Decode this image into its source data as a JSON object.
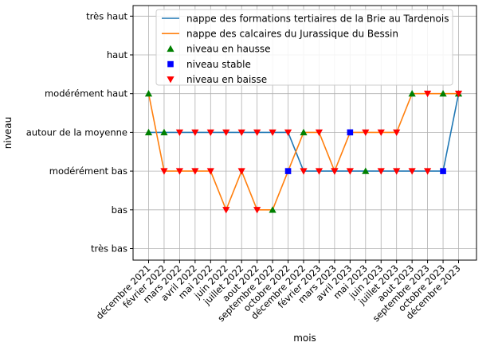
{
  "chart_data": {
    "type": "line",
    "xlabel": "mois",
    "ylabel": "niveau",
    "grid": true,
    "legend_position": "top-right",
    "y_levels": [
      "très bas",
      "bas",
      "modérément bas",
      "autour de la moyenne",
      "modérément haut",
      "haut",
      "très haut"
    ],
    "x_tick_labels": [
      "décembre 2021",
      "février 2022",
      "mars 2022",
      "avril 2022",
      "mai 2022",
      "juin 2022",
      "juillet 2022",
      "aout 2022",
      "septembre 2022",
      "octobre 2022",
      "décembre 2022",
      "février 2023",
      "mars 2023",
      "avril 2023",
      "mai 2023",
      "juin 2023",
      "juillet 2023",
      "aout 2023",
      "septembre 2023",
      "octobre 2023",
      "décembre 2023"
    ],
    "series": [
      {
        "name": "nappe des formations tertiaires de la Brie au Tardenois",
        "color": "#1f77b4",
        "values": [
          "autour de la moyenne",
          "autour de la moyenne",
          "autour de la moyenne",
          "autour de la moyenne",
          "autour de la moyenne",
          "autour de la moyenne",
          "autour de la moyenne",
          "autour de la moyenne",
          "autour de la moyenne",
          "autour de la moyenne",
          "modérément bas",
          "modérément bas",
          "modérément bas",
          "modérément bas",
          "modérément bas",
          "modérément bas",
          "modérément bas",
          "modérément bas",
          "modérément bas",
          "modérément bas",
          "modérément haut"
        ],
        "markers": [
          "hausse",
          "hausse",
          "baisse",
          "baisse",
          "baisse",
          "baisse",
          "baisse",
          "baisse",
          "baisse",
          "baisse",
          "baisse",
          "baisse",
          "baisse",
          "baisse",
          "hausse",
          "baisse",
          "baisse",
          "baisse",
          "baisse",
          "stable",
          "hausse"
        ]
      },
      {
        "name": "nappe des calcaires du Jurassique du Bessin",
        "color": "#ff7f0e",
        "values": [
          "modérément haut",
          "modérément bas",
          "modérément bas",
          "modérément bas",
          "modérément bas",
          "bas",
          "modérément bas",
          "bas",
          "bas",
          "modérément bas",
          "autour de la moyenne",
          "autour de la moyenne",
          "modérément bas",
          "autour de la moyenne",
          "autour de la moyenne",
          "autour de la moyenne",
          "autour de la moyenne",
          "modérément haut",
          "modérément haut",
          "modérément haut",
          "modérément haut"
        ],
        "markers": [
          "hausse",
          "baisse",
          "baisse",
          "baisse",
          "baisse",
          "baisse",
          "baisse",
          "baisse",
          "hausse",
          "stable",
          "hausse",
          "baisse",
          "baisse",
          "stable",
          "baisse",
          "baisse",
          "baisse",
          "hausse",
          "baisse",
          "hausse",
          "baisse"
        ]
      }
    ],
    "marker_legend": [
      {
        "key": "hausse",
        "label": "niveau en hausse",
        "shape": "triangle-up",
        "color": "#008000"
      },
      {
        "key": "stable",
        "label": "niveau stable",
        "shape": "square",
        "color": "#0000ff"
      },
      {
        "key": "baisse",
        "label": "niveau en baisse",
        "shape": "triangle-down",
        "color": "#ff0000"
      }
    ]
  }
}
